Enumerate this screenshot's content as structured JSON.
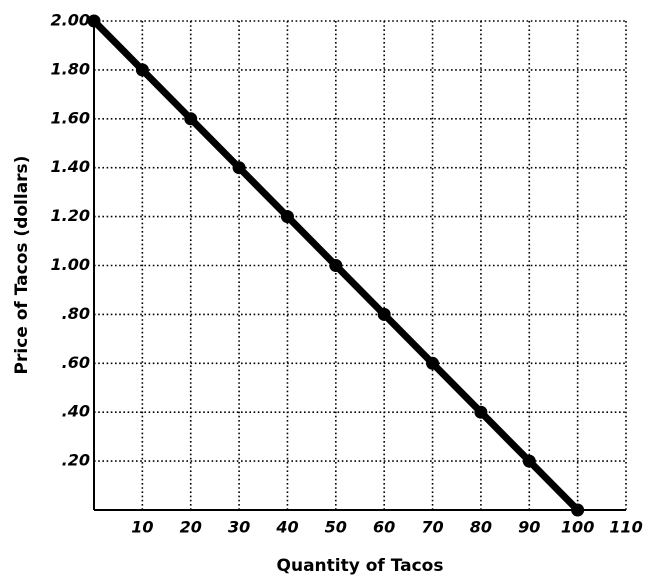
{
  "chart_data": {
    "type": "line",
    "x_label": "Quantity of Tacos",
    "y_label": "Price of Tacos (dollars)",
    "x": [
      0,
      10,
      20,
      30,
      40,
      50,
      60,
      70,
      80,
      90,
      100
    ],
    "series": [
      {
        "color": "#000000",
        "values": [
          2.0,
          1.8,
          1.6,
          1.4,
          1.2,
          1.0,
          0.8,
          0.6,
          0.4,
          0.2,
          0
        ]
      }
    ],
    "xlim": [
      0,
      110
    ],
    "xticks": [
      10,
      20,
      30,
      40,
      50,
      60,
      70,
      80,
      90,
      100,
      110
    ],
    "ylim": [
      0,
      2.0
    ],
    "yticks": [
      {
        "value": 0.2,
        "label": ".20"
      },
      {
        "value": 0.4,
        "label": ".40"
      },
      {
        "value": 0.6,
        "label": ".60"
      },
      {
        "value": 0.8,
        "label": ".80"
      },
      {
        "value": 1.0,
        "label": "1.00"
      },
      {
        "value": 1.2,
        "label": "1.20"
      },
      {
        "value": 1.4,
        "label": "1.40"
      },
      {
        "value": 1.6,
        "label": "1.60"
      },
      {
        "value": 1.8,
        "label": "1.80"
      },
      {
        "value": 2.0,
        "label": "2.00"
      }
    ],
    "grid": true,
    "markers": true
  }
}
